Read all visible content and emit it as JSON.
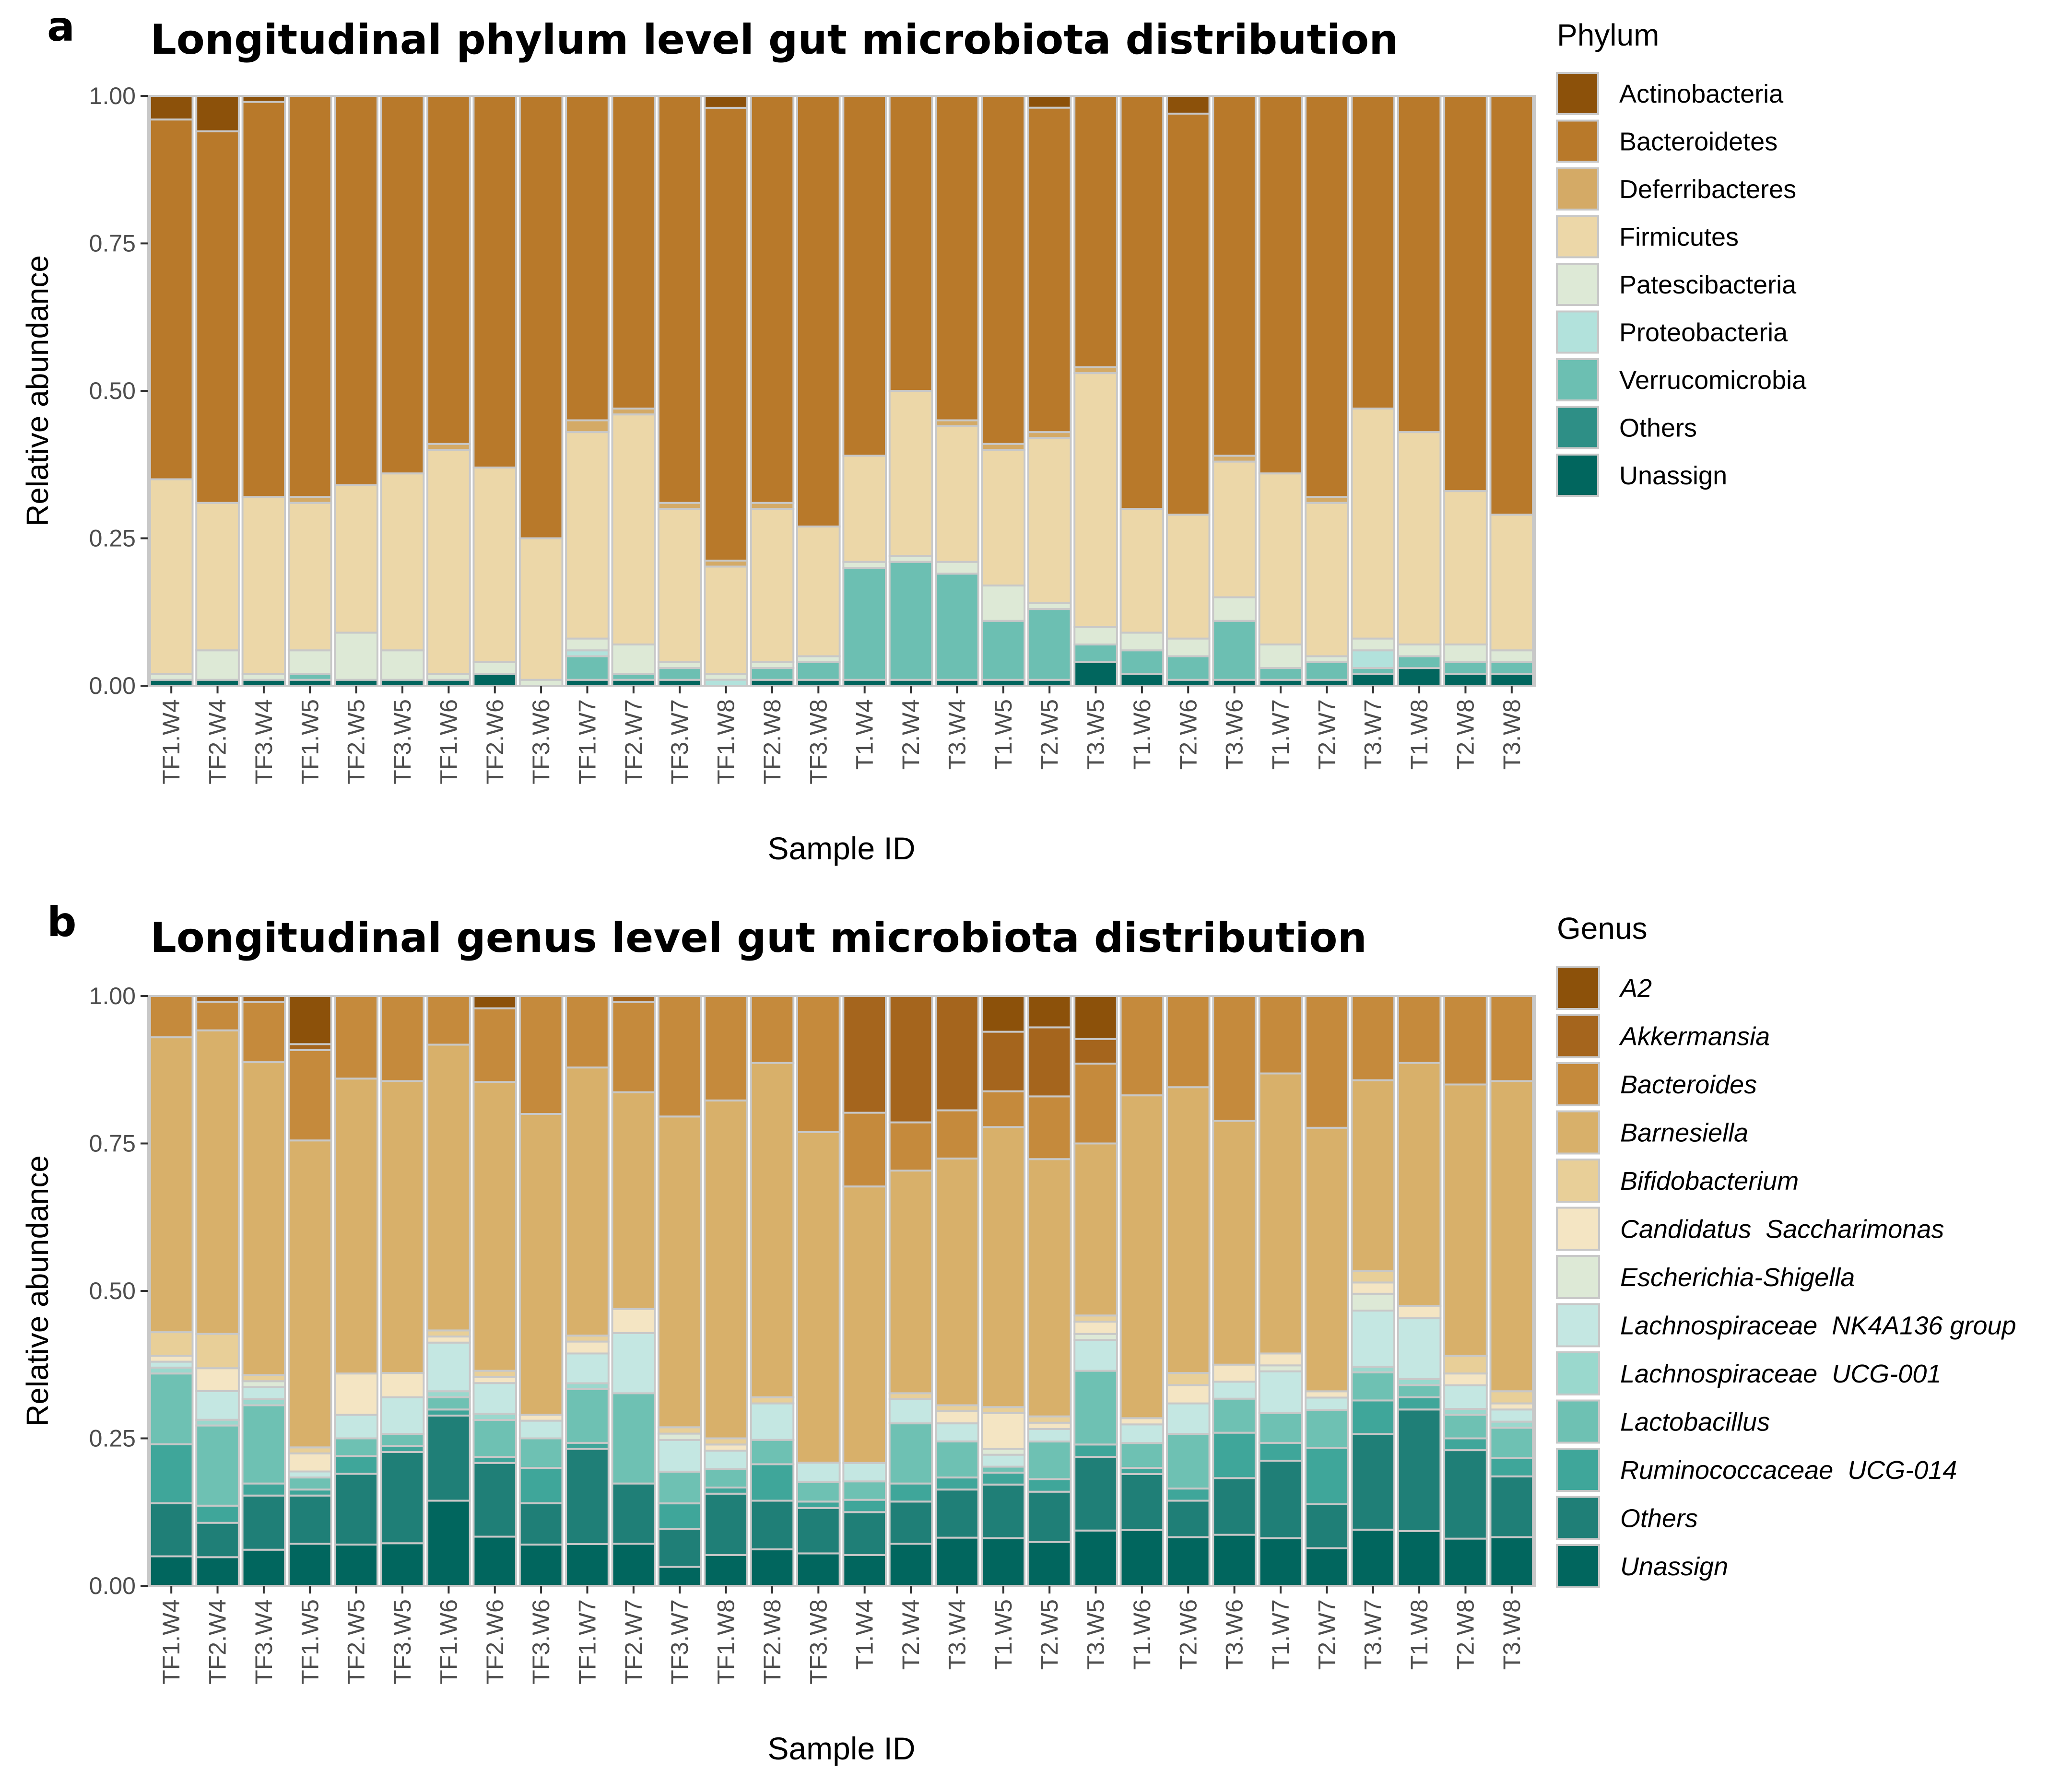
{
  "colors": {
    "panel_border": "#c8c8c8",
    "bar_stroke": "#c8c8c8",
    "tick_text": "#4d4d4d"
  },
  "chart_data": [
    {
      "panel_letter": "a",
      "type": "bar",
      "stacked": true,
      "title": "Longitudinal phylum level gut microbiota distribution",
      "xlabel": "Sample ID",
      "ylabel": "Relative abundance",
      "ylim": [
        0,
        1
      ],
      "yticks": [
        "0.00",
        "0.25",
        "0.50",
        "0.75",
        "1.00"
      ],
      "grid": false,
      "legend_position": "right",
      "legend_title": "Phylum",
      "legend_italic": false,
      "categories": [
        "TF1.W4",
        "TF2.W4",
        "TF3.W4",
        "TF1.W5",
        "TF2.W5",
        "TF3.W5",
        "TF1.W6",
        "TF2.W6",
        "TF3.W6",
        "TF1.W7",
        "TF2.W7",
        "TF3.W7",
        "TF1.W8",
        "TF2.W8",
        "TF3.W8",
        "T1.W4",
        "T2.W4",
        "T3.W4",
        "T1.W5",
        "T2.W5",
        "T3.W5",
        "T1.W6",
        "T2.W6",
        "T3.W6",
        "T1.W7",
        "T2.W7",
        "T3.W7",
        "T1.W8",
        "T2.W8",
        "T3.W8"
      ],
      "series": [
        {
          "name": "Actinobacteria",
          "color": "#8c510a",
          "values": [
            0.04,
            0.06,
            0.01,
            0.0,
            0.0,
            0.0,
            0.0,
            0.0,
            0.0,
            0.0,
            0.0,
            0.0,
            0.02,
            0.0,
            0.0,
            0.0,
            0.0,
            0.0,
            0.0,
            0.02,
            0.0,
            0.0,
            0.03,
            0.0,
            0.0,
            0.0,
            0.0,
            0.0,
            0.0,
            0.0
          ]
        },
        {
          "name": "Bacteroidetes",
          "color": "#b8792a",
          "values": [
            0.61,
            0.63,
            0.67,
            0.68,
            0.66,
            0.64,
            0.59,
            0.63,
            0.75,
            0.55,
            0.53,
            0.69,
            0.76,
            0.69,
            0.73,
            0.61,
            0.5,
            0.55,
            0.59,
            0.55,
            0.46,
            0.7,
            0.68,
            0.61,
            0.64,
            0.68,
            0.53,
            0.57,
            0.67,
            0.71
          ]
        },
        {
          "name": "Deferribacteres",
          "color": "#d4aa66",
          "values": [
            0.0,
            0.0,
            0.0,
            0.01,
            0.0,
            0.0,
            0.01,
            0.0,
            0.0,
            0.02,
            0.01,
            0.01,
            0.01,
            0.01,
            0.0,
            0.0,
            0.0,
            0.01,
            0.01,
            0.01,
            0.01,
            0.0,
            0.0,
            0.01,
            0.0,
            0.01,
            0.0,
            0.0,
            0.0,
            0.0
          ]
        },
        {
          "name": "Firmicutes",
          "color": "#ecd7a8",
          "values": [
            0.33,
            0.25,
            0.3,
            0.25,
            0.25,
            0.3,
            0.38,
            0.33,
            0.24,
            0.35,
            0.39,
            0.26,
            0.18,
            0.26,
            0.22,
            0.18,
            0.28,
            0.23,
            0.23,
            0.28,
            0.43,
            0.21,
            0.21,
            0.23,
            0.29,
            0.26,
            0.39,
            0.36,
            0.26,
            0.23
          ]
        },
        {
          "name": "Patescibacteria",
          "color": "#dde9d6",
          "values": [
            0.01,
            0.05,
            0.01,
            0.04,
            0.08,
            0.05,
            0.01,
            0.02,
            0.01,
            0.02,
            0.05,
            0.01,
            0.01,
            0.01,
            0.01,
            0.01,
            0.01,
            0.02,
            0.06,
            0.01,
            0.03,
            0.03,
            0.03,
            0.04,
            0.04,
            0.01,
            0.02,
            0.02,
            0.03,
            0.02
          ]
        },
        {
          "name": "Proteobacteria",
          "color": "#b2e2dc",
          "values": [
            0.0,
            0.0,
            0.0,
            0.0,
            0.0,
            0.0,
            0.0,
            0.0,
            0.0,
            0.01,
            0.0,
            0.0,
            0.01,
            0.0,
            0.0,
            0.0,
            0.0,
            0.0,
            0.0,
            0.0,
            0.0,
            0.0,
            0.0,
            0.0,
            0.0,
            0.0,
            0.03,
            0.0,
            0.0,
            0.0
          ]
        },
        {
          "name": "Verrucomicrobia",
          "color": "#6cbfb2",
          "values": [
            0.0,
            0.0,
            0.0,
            0.01,
            0.0,
            0.0,
            0.0,
            0.0,
            0.0,
            0.04,
            0.01,
            0.02,
            0.0,
            0.02,
            0.03,
            0.19,
            0.2,
            0.18,
            0.1,
            0.12,
            0.03,
            0.04,
            0.04,
            0.1,
            0.02,
            0.03,
            0.01,
            0.02,
            0.02,
            0.02
          ]
        },
        {
          "name": "Others",
          "color": "#2e8f86",
          "values": [
            0.0,
            0.0,
            0.0,
            0.0,
            0.0,
            0.0,
            0.0,
            0.0,
            0.0,
            0.0,
            0.0,
            0.0,
            0.0,
            0.0,
            0.0,
            0.0,
            0.0,
            0.0,
            0.0,
            0.0,
            0.0,
            0.0,
            0.0,
            0.0,
            0.0,
            0.0,
            0.0,
            0.0,
            0.0,
            0.0
          ]
        },
        {
          "name": "Unassign",
          "color": "#01665e",
          "values": [
            0.01,
            0.01,
            0.01,
            0.01,
            0.01,
            0.01,
            0.01,
            0.02,
            0.0,
            0.01,
            0.01,
            0.01,
            0.0,
            0.01,
            0.01,
            0.01,
            0.01,
            0.01,
            0.01,
            0.01,
            0.04,
            0.02,
            0.01,
            0.01,
            0.01,
            0.01,
            0.02,
            0.03,
            0.02,
            0.02
          ]
        }
      ]
    },
    {
      "panel_letter": "b",
      "type": "bar",
      "stacked": true,
      "title": "Longitudinal genus level gut microbiota distribution",
      "xlabel": "Sample ID",
      "ylabel": "Relative abundance",
      "ylim": [
        0,
        1
      ],
      "yticks": [
        "0.00",
        "0.25",
        "0.50",
        "0.75",
        "1.00"
      ],
      "grid": false,
      "legend_position": "right",
      "legend_title": "Genus",
      "legend_italic": true,
      "categories": [
        "TF1.W4",
        "TF2.W4",
        "TF3.W4",
        "TF1.W5",
        "TF2.W5",
        "TF3.W5",
        "TF1.W6",
        "TF2.W6",
        "TF3.W6",
        "TF1.W7",
        "TF2.W7",
        "TF3.W7",
        "TF1.W8",
        "TF2.W8",
        "TF3.W8",
        "T1.W4",
        "T2.W4",
        "T3.W4",
        "T1.W5",
        "T2.W5",
        "T3.W5",
        "T1.W6",
        "T2.W6",
        "T3.W6",
        "T1.W7",
        "T2.W7",
        "T3.W7",
        "T1.W8",
        "T2.W8",
        "T3.W8"
      ],
      "series": [
        {
          "name": "A2",
          "color": "#8c510a",
          "values": [
            0.0,
            0.0,
            0.0,
            0.08,
            0.0,
            0.0,
            0.0,
            0.02,
            0.0,
            0.0,
            0.0,
            0.0,
            0.0,
            0.0,
            0.0,
            0.0,
            0.0,
            0.0,
            0.06,
            0.05,
            0.07,
            0.0,
            0.0,
            0.0,
            0.0,
            0.0,
            0.0,
            0.0,
            0.0,
            0.0
          ]
        },
        {
          "name": "Akkermansia",
          "color": "#a5651d",
          "values": [
            0.0,
            0.01,
            0.01,
            0.01,
            0.0,
            0.0,
            0.0,
            0.0,
            0.0,
            0.0,
            0.01,
            0.0,
            0.0,
            0.0,
            0.0,
            0.19,
            0.21,
            0.19,
            0.1,
            0.11,
            0.04,
            0.0,
            0.0,
            0.0,
            0.0,
            0.0,
            0.0,
            0.0,
            0.0,
            0.0
          ]
        },
        {
          "name": "Bacteroides",
          "color": "#c58a3c",
          "values": [
            0.07,
            0.05,
            0.1,
            0.15,
            0.14,
            0.14,
            0.08,
            0.12,
            0.2,
            0.12,
            0.15,
            0.19,
            0.17,
            0.11,
            0.21,
            0.12,
            0.08,
            0.08,
            0.06,
            0.1,
            0.13,
            0.16,
            0.15,
            0.22,
            0.13,
            0.21,
            0.15,
            0.11,
            0.15,
            0.14
          ]
        },
        {
          "name": "Barnesiella",
          "color": "#d8b06a",
          "values": [
            0.5,
            0.53,
            0.52,
            0.51,
            0.5,
            0.48,
            0.47,
            0.47,
            0.51,
            0.45,
            0.36,
            0.49,
            0.55,
            0.55,
            0.51,
            0.45,
            0.37,
            0.41,
            0.47,
            0.41,
            0.28,
            0.52,
            0.47,
            0.43,
            0.47,
            0.42,
            0.34,
            0.4,
            0.46,
            0.51
          ]
        },
        {
          "name": "Bifidobacterium",
          "color": "#e8cf98",
          "values": [
            0.04,
            0.06,
            0.01,
            0.01,
            0.0,
            0.0,
            0.01,
            0.01,
            0.0,
            0.01,
            0.0,
            0.01,
            0.01,
            0.01,
            0.0,
            0.0,
            0.01,
            0.01,
            0.01,
            0.01,
            0.01,
            0.0,
            0.02,
            0.0,
            0.0,
            0.0,
            0.02,
            0.0,
            0.03,
            0.02
          ]
        },
        {
          "name": "Candidatus  Saccharimonas",
          "color": "#f4e5c3",
          "values": [
            0.01,
            0.04,
            0.0,
            0.03,
            0.07,
            0.04,
            0.01,
            0.01,
            0.01,
            0.02,
            0.04,
            0.0,
            0.01,
            0.0,
            0.0,
            0.0,
            0.0,
            0.02,
            0.06,
            0.01,
            0.02,
            0.01,
            0.03,
            0.03,
            0.02,
            0.01,
            0.02,
            0.02,
            0.02,
            0.01
          ]
        },
        {
          "name": "Escherichia-Shigella",
          "color": "#dde9d6",
          "values": [
            0.0,
            0.0,
            0.01,
            0.0,
            0.0,
            0.0,
            0.0,
            0.0,
            0.0,
            0.0,
            0.0,
            0.01,
            0.0,
            0.0,
            0.0,
            0.0,
            0.0,
            0.0,
            0.01,
            0.0,
            0.01,
            0.0,
            0.0,
            0.0,
            0.01,
            0.0,
            0.03,
            0.0,
            0.0,
            0.0
          ]
        },
        {
          "name": "Lachnospiraceae  NK4A136 group",
          "color": "#c4e7e2",
          "values": [
            0.01,
            0.05,
            0.02,
            0.01,
            0.04,
            0.06,
            0.08,
            0.05,
            0.03,
            0.05,
            0.1,
            0.05,
            0.03,
            0.06,
            0.03,
            0.03,
            0.04,
            0.03,
            0.02,
            0.02,
            0.05,
            0.03,
            0.05,
            0.03,
            0.07,
            0.02,
            0.1,
            0.1,
            0.04,
            0.02
          ]
        },
        {
          "name": "Lachnospiraceae  UCG-001",
          "color": "#9ad8cd",
          "values": [
            0.01,
            0.01,
            0.01,
            0.0,
            0.0,
            0.0,
            0.01,
            0.01,
            0.0,
            0.01,
            0.0,
            0.0,
            0.0,
            0.0,
            0.0,
            0.0,
            0.0,
            0.0,
            0.0,
            0.0,
            0.0,
            0.0,
            0.0,
            0.0,
            0.0,
            0.0,
            0.01,
            0.01,
            0.01,
            0.01
          ]
        },
        {
          "name": "Lactobacillus",
          "color": "#6ec1b3",
          "values": [
            0.12,
            0.14,
            0.13,
            0.02,
            0.03,
            0.02,
            0.02,
            0.06,
            0.05,
            0.09,
            0.15,
            0.05,
            0.03,
            0.04,
            0.03,
            0.03,
            0.1,
            0.06,
            0.01,
            0.06,
            0.12,
            0.04,
            0.09,
            0.06,
            0.05,
            0.06,
            0.05,
            0.02,
            0.04,
            0.05
          ]
        },
        {
          "name": "Ruminococcaceae  UCG-014",
          "color": "#3fa69a",
          "values": [
            0.1,
            0.03,
            0.02,
            0.01,
            0.03,
            0.01,
            0.01,
            0.01,
            0.06,
            0.01,
            0.0,
            0.04,
            0.01,
            0.06,
            0.01,
            0.02,
            0.03,
            0.02,
            0.02,
            0.02,
            0.02,
            0.01,
            0.02,
            0.08,
            0.03,
            0.09,
            0.06,
            0.02,
            0.02,
            0.03
          ]
        },
        {
          "name": "Others",
          "color": "#1f7f77",
          "values": [
            0.09,
            0.06,
            0.09,
            0.08,
            0.12,
            0.15,
            0.14,
            0.12,
            0.07,
            0.16,
            0.1,
            0.06,
            0.1,
            0.08,
            0.07,
            0.07,
            0.07,
            0.08,
            0.09,
            0.08,
            0.12,
            0.09,
            0.06,
            0.1,
            0.13,
            0.07,
            0.17,
            0.2,
            0.15,
            0.1
          ]
        },
        {
          "name": "Unassign",
          "color": "#01665e",
          "values": [
            0.05,
            0.05,
            0.06,
            0.07,
            0.07,
            0.07,
            0.14,
            0.08,
            0.07,
            0.07,
            0.07,
            0.03,
            0.05,
            0.06,
            0.05,
            0.05,
            0.07,
            0.08,
            0.08,
            0.07,
            0.09,
            0.09,
            0.08,
            0.09,
            0.08,
            0.06,
            0.1,
            0.09,
            0.08,
            0.08
          ]
        }
      ]
    }
  ]
}
